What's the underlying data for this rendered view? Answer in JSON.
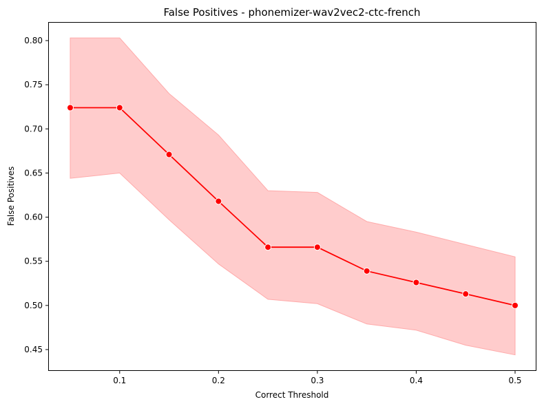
{
  "chart_data": {
    "type": "line",
    "title": "False Positives - phonemizer-wav2vec2-ctc-french",
    "xlabel": "Correct Threshold",
    "ylabel": "False Positives",
    "xlim": [
      0.05,
      0.5
    ],
    "ylim": [
      0.43,
      0.82
    ],
    "x_ticks": [
      0.1,
      0.2,
      0.3,
      0.4,
      0.5
    ],
    "x_tick_labels": [
      "0.1",
      "0.2",
      "0.3",
      "0.4",
      "0.5"
    ],
    "y_ticks": [
      0.45,
      0.5,
      0.55,
      0.6,
      0.65,
      0.7,
      0.75,
      0.8
    ],
    "y_tick_labels": [
      "0.45",
      "0.50",
      "0.55",
      "0.60",
      "0.65",
      "0.70",
      "0.75",
      "0.80"
    ],
    "grid": false,
    "legend": "none",
    "series": [
      {
        "line_color": "#ff0000",
        "band_color": "#ffcccc",
        "x": [
          0.05,
          0.1,
          0.15,
          0.2,
          0.25,
          0.3,
          0.35,
          0.4,
          0.45,
          0.5
        ],
        "y": [
          0.724,
          0.724,
          0.671,
          0.618,
          0.566,
          0.566,
          0.539,
          0.526,
          0.513,
          0.5
        ],
        "ci_lower": [
          0.644,
          0.65,
          0.597,
          0.547,
          0.507,
          0.502,
          0.479,
          0.472,
          0.455,
          0.444
        ],
        "ci_upper": [
          0.803,
          0.803,
          0.74,
          0.693,
          0.63,
          0.628,
          0.595,
          0.583,
          0.569,
          0.555
        ]
      }
    ]
  }
}
